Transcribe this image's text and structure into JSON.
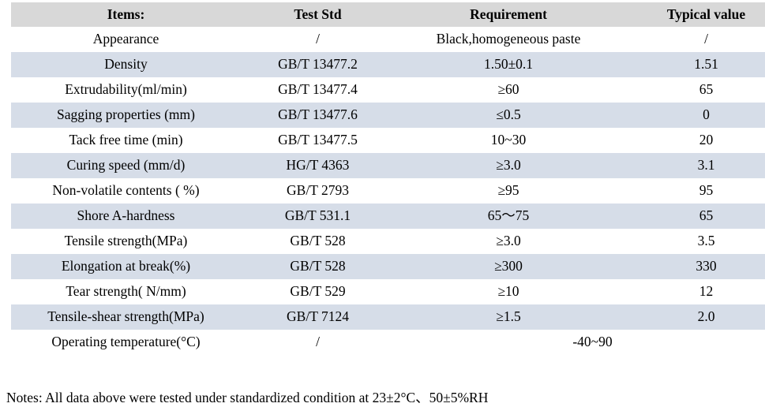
{
  "table": {
    "columns": [
      "Items:",
      "Test Std",
      "Requirement",
      "Typical value"
    ],
    "rows": [
      {
        "item": "Appearance",
        "std": "/",
        "req": "Black,homogeneous paste",
        "typ": "/"
      },
      {
        "item": "Density",
        "std": "GB/T 13477.2",
        "req": "1.50±0.1",
        "typ": "1.51"
      },
      {
        "item": "Extrudability(ml/min)",
        "std": "GB/T 13477.4",
        "req": "≥60",
        "typ": "65"
      },
      {
        "item": "Sagging properties (mm)",
        "std": "GB/T 13477.6",
        "req": "≤0.5",
        "typ": "0"
      },
      {
        "item": "Tack free time (min)",
        "std": "GB/T 13477.5",
        "req": "10~30",
        "typ": "20"
      },
      {
        "item": "Curing speed (mm/d)",
        "std": "HG/T 4363",
        "req": "≥3.0",
        "typ": "3.1"
      },
      {
        "item": "Non-volatile contents ( %)",
        "std": "GB/T 2793",
        "req": "≥95",
        "typ": "95"
      },
      {
        "item": "Shore A-hardness",
        "std": "GB/T 531.1",
        "req": "65～75",
        "typ": "65"
      },
      {
        "item": "Tensile strength(MPa)",
        "std": "GB/T 528",
        "req": "≥3.0",
        "typ": "3.5"
      },
      {
        "item": "Elongation at break(%)",
        "std": "GB/T 528",
        "req": "≥300",
        "typ": "330"
      },
      {
        "item": "Tear strength( N/mm)",
        "std": "GB/T 529",
        "req": "≥10",
        "typ": "12"
      },
      {
        "item": "Tensile-shear strength(MPa)",
        "std": "GB/T 7124",
        "req": "≥1.5",
        "typ": "2.0"
      },
      {
        "item": "Operating temperature(°C)",
        "std": "/",
        "req_span": "-40~90"
      }
    ],
    "colors": {
      "header_bg": "#d8d8d8",
      "stripe_bg": "#d6dde8",
      "row_bg": "#ffffff"
    }
  },
  "notes": "Notes: All data above were tested under standardized condition at 23±2°C、50±5%RH"
}
